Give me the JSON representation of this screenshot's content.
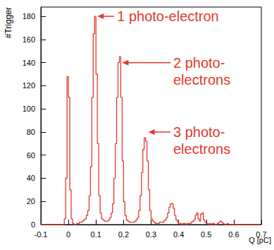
{
  "chart_data": {
    "type": "histogram",
    "color": "#e0392e",
    "x_label": "Q [pC]",
    "y_label": "#Trigger",
    "xlim": [
      -0.1,
      0.7
    ],
    "ylim": [
      0,
      188
    ],
    "xticks": [
      -0.1,
      0,
      0.1,
      0.2,
      0.3,
      0.4,
      0.5,
      0.6,
      0.7
    ],
    "yticks": [
      0,
      20,
      40,
      60,
      80,
      100,
      120,
      140,
      160,
      180
    ],
    "grid": false,
    "bins": [
      -0.1,
      -0.095,
      -0.09,
      -0.085,
      -0.08,
      -0.075,
      -0.07,
      -0.065,
      -0.06,
      -0.055,
      -0.05,
      -0.045,
      -0.04,
      -0.035,
      -0.03,
      -0.025,
      -0.02,
      -0.015,
      -0.01,
      -0.005,
      0,
      0.005,
      0.01,
      0.015,
      0.02,
      0.025,
      0.03,
      0.035,
      0.04,
      0.045,
      0.05,
      0.055,
      0.06,
      0.065,
      0.07,
      0.075,
      0.08,
      0.085,
      0.09,
      0.095,
      0.1,
      0.105,
      0.11,
      0.115,
      0.12,
      0.125,
      0.13,
      0.135,
      0.14,
      0.145,
      0.15,
      0.155,
      0.16,
      0.165,
      0.17,
      0.175,
      0.18,
      0.185,
      0.19,
      0.195,
      0.2,
      0.205,
      0.21,
      0.215,
      0.22,
      0.225,
      0.23,
      0.235,
      0.24,
      0.245,
      0.25,
      0.255,
      0.26,
      0.265,
      0.27,
      0.275,
      0.28,
      0.285,
      0.29,
      0.295,
      0.3,
      0.305,
      0.31,
      0.315,
      0.32,
      0.325,
      0.33,
      0.335,
      0.34,
      0.345,
      0.35,
      0.355,
      0.36,
      0.365,
      0.37,
      0.375,
      0.38,
      0.385,
      0.39,
      0.395,
      0.4,
      0.405,
      0.41,
      0.415,
      0.42,
      0.425,
      0.43,
      0.435,
      0.44,
      0.445,
      0.45,
      0.455,
      0.46,
      0.465,
      0.47,
      0.475,
      0.48,
      0.485,
      0.49,
      0.495,
      0.5,
      0.505,
      0.51,
      0.515,
      0.52,
      0.525,
      0.53,
      0.535,
      0.54,
      0.545,
      0.55,
      0.555,
      0.56,
      0.565,
      0.57,
      0.575,
      0.58,
      0.585,
      0.59,
      0.595,
      0.6,
      0.605,
      0.61,
      0.615,
      0.62,
      0.625,
      0.63,
      0.635,
      0.64,
      0.645,
      0.65,
      0.655,
      0.66,
      0.665,
      0.67,
      0.675,
      0.68,
      0.685,
      0.69,
      0.695,
      0.7
    ],
    "counts": [
      0,
      0,
      0,
      0,
      0,
      0,
      0,
      0,
      0,
      0,
      0,
      0,
      0,
      0,
      0,
      0,
      0,
      5,
      40,
      128,
      110,
      30,
      5,
      1,
      0,
      0,
      1,
      1,
      2,
      2,
      3,
      4,
      5,
      8,
      12,
      25,
      50,
      110,
      165,
      180,
      130,
      70,
      25,
      10,
      5,
      4,
      3,
      3,
      3,
      4,
      6,
      10,
      18,
      40,
      70,
      110,
      140,
      145,
      110,
      55,
      20,
      8,
      4,
      3,
      2,
      2,
      2,
      2,
      3,
      4,
      6,
      12,
      25,
      45,
      65,
      75,
      72,
      55,
      30,
      12,
      5,
      3,
      2,
      1,
      1,
      1,
      2,
      2,
      2,
      3,
      4,
      6,
      10,
      15,
      18,
      18,
      14,
      8,
      4,
      2,
      1,
      1,
      0,
      1,
      1,
      0,
      1,
      1,
      1,
      2,
      3,
      4,
      8,
      10,
      5,
      3,
      9,
      10,
      4,
      2,
      1,
      0,
      1,
      0,
      1,
      1,
      0,
      0,
      1,
      2,
      3,
      2,
      1,
      0,
      0,
      1,
      0,
      0,
      0,
      0,
      0,
      0,
      0,
      0,
      0,
      0,
      0,
      0,
      0,
      0,
      0,
      0,
      0,
      0,
      0,
      0,
      0,
      0,
      0,
      0
    ],
    "annotations": [
      {
        "text": "1 photo-electron",
        "x": 0.105,
        "y": 180
      },
      {
        "text": "2 photo-\nelectrons",
        "x": 0.195,
        "y": 140
      },
      {
        "text": "3 photo-\nelectrons",
        "x": 0.29,
        "y": 80
      }
    ]
  }
}
